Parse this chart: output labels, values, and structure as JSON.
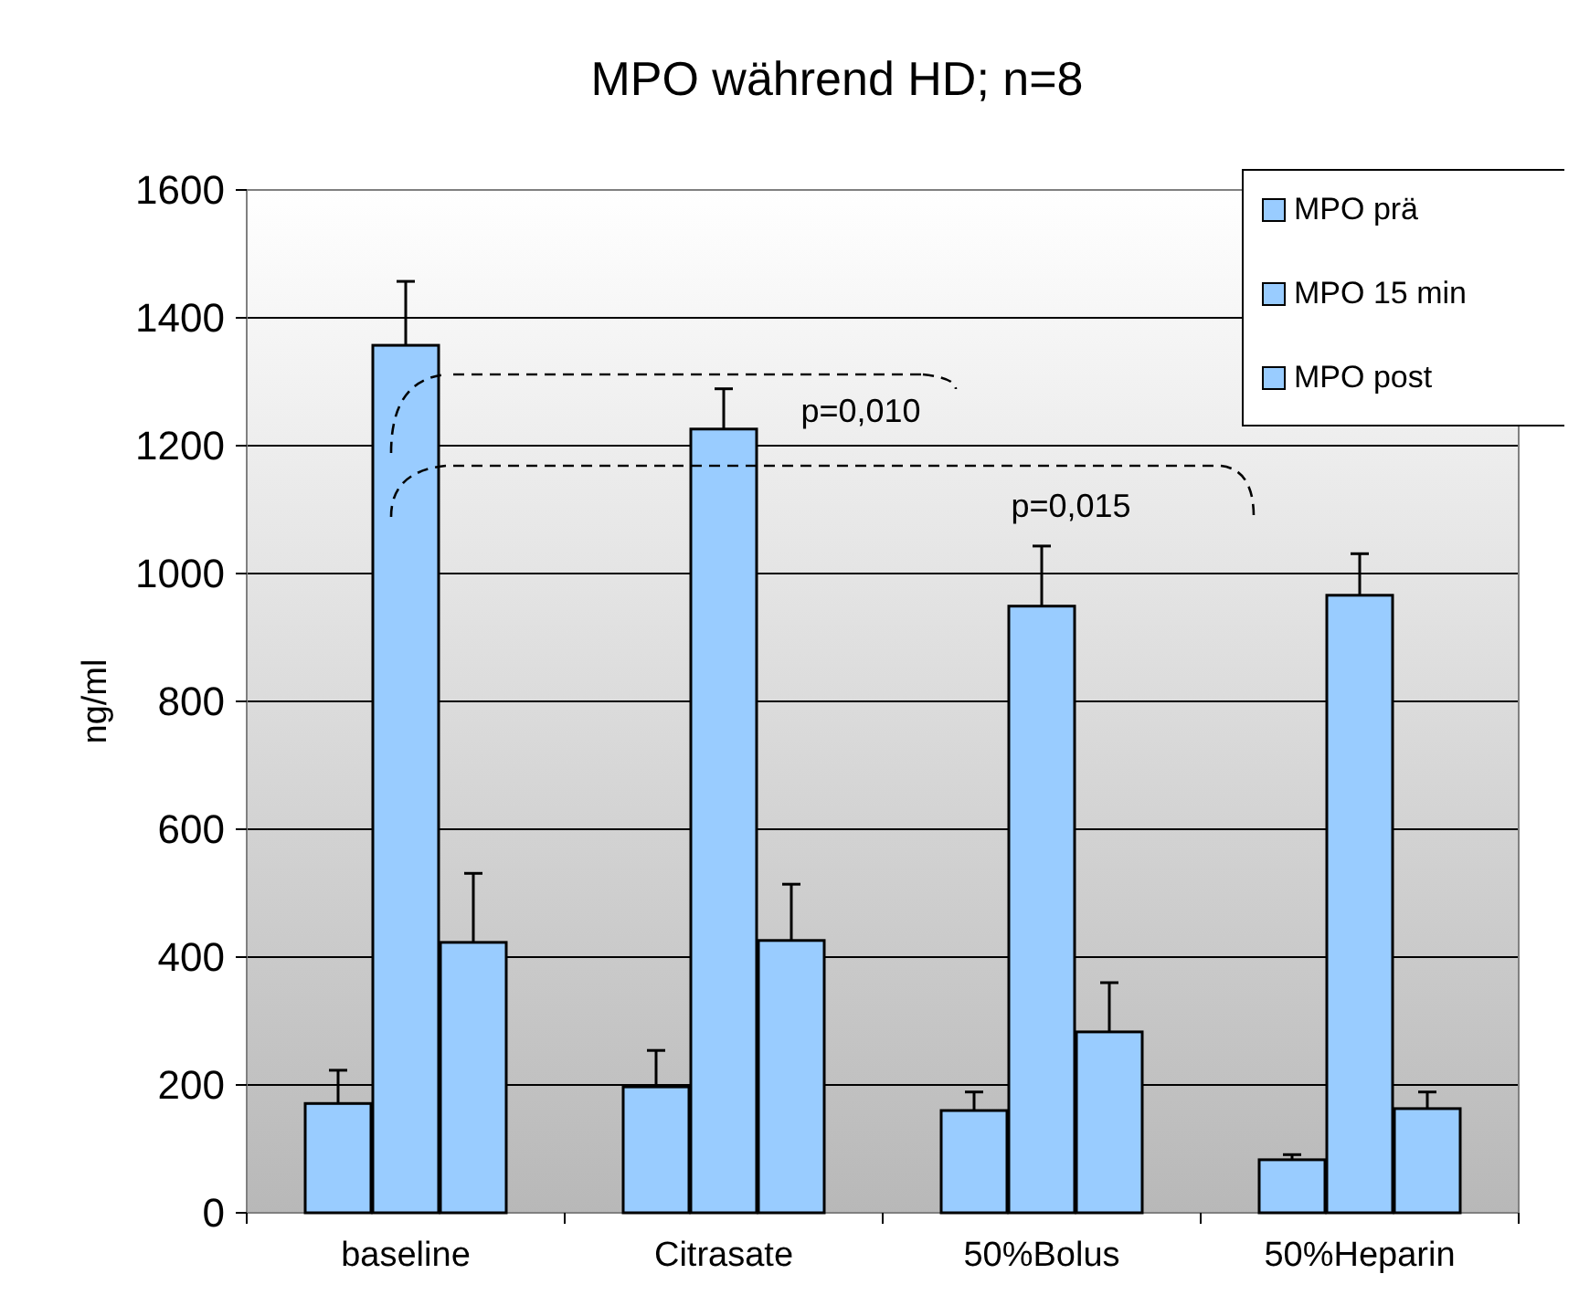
{
  "chart_data": {
    "type": "bar",
    "title": "MPO während HD; n=8",
    "ylabel": "ng/ml",
    "categories": [
      "baseline",
      "Citrasate",
      "50%Bolus",
      "50%Heparin"
    ],
    "series": [
      {
        "name": "MPO prä",
        "color": "#99ccff",
        "values": [
          171,
          197,
          160,
          83
        ],
        "errors": [
          52,
          57,
          29,
          8
        ]
      },
      {
        "name": "MPO 15 min",
        "color": "#99ccff",
        "values": [
          1357,
          1226,
          949,
          966
        ],
        "errors": [
          100,
          63,
          94,
          65
        ]
      },
      {
        "name": "MPO post",
        "color": "#99ccff",
        "values": [
          423,
          426,
          283,
          163
        ],
        "errors": [
          108,
          88,
          77,
          26
        ]
      }
    ],
    "ylim": [
      0,
      1600
    ],
    "yticks": [
      0,
      200,
      400,
      600,
      800,
      1000,
      1200,
      1400,
      1600
    ],
    "grid": true,
    "legend": "top right",
    "annotations": [
      "p=0,010",
      "p=0,015"
    ]
  }
}
